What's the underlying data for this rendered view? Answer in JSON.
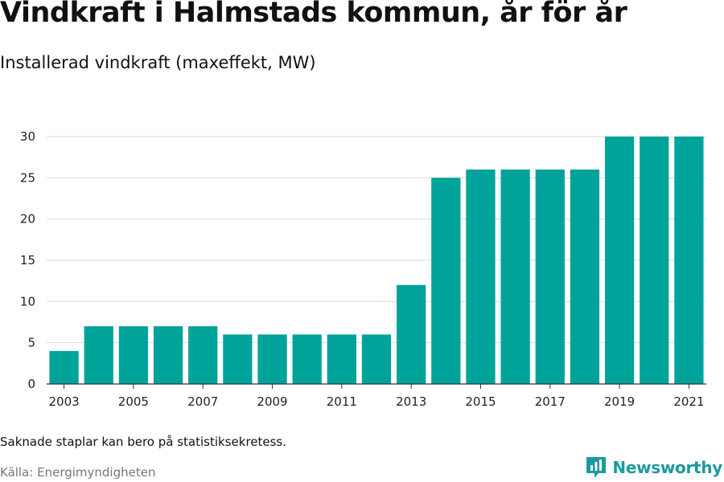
{
  "header": {
    "title": "Vindkraft i Halmstads kommun, år för år",
    "subtitle": "Installerad vindkraft (maxeffekt, MW)"
  },
  "footer": {
    "note": "Saknade staplar kan bero på statistiksekretess.",
    "source": "Källa: Energimyndigheten",
    "brand": "Newsworthy",
    "brand_icon": "bar-chart-logo-icon"
  },
  "colors": {
    "bar": "#00a39a",
    "grid": "#d9d9d9",
    "axis": "#333333",
    "brand": "#1b9aa0"
  },
  "chart_data": {
    "type": "bar",
    "title": "Vindkraft i Halmstads kommun, år för år",
    "subtitle": "Installerad vindkraft (maxeffekt, MW)",
    "categories": [
      "2003",
      "2004",
      "2005",
      "2006",
      "2007",
      "2008",
      "2009",
      "2010",
      "2011",
      "2012",
      "2013",
      "2014",
      "2015",
      "2016",
      "2017",
      "2018",
      "2019",
      "2020",
      "2021"
    ],
    "values": [
      4,
      7,
      7,
      7,
      7,
      6,
      6,
      6,
      6,
      6,
      12,
      25,
      26,
      26,
      26,
      26,
      30,
      30,
      30
    ],
    "x_tick_labels": [
      "2003",
      "2005",
      "2007",
      "2009",
      "2011",
      "2013",
      "2015",
      "2017",
      "2019",
      "2021"
    ],
    "y_ticks": [
      0,
      5,
      10,
      15,
      20,
      25,
      30
    ],
    "ylim": [
      0,
      30
    ],
    "xlabel": "",
    "ylabel": "",
    "grid": true,
    "legend": "none"
  }
}
